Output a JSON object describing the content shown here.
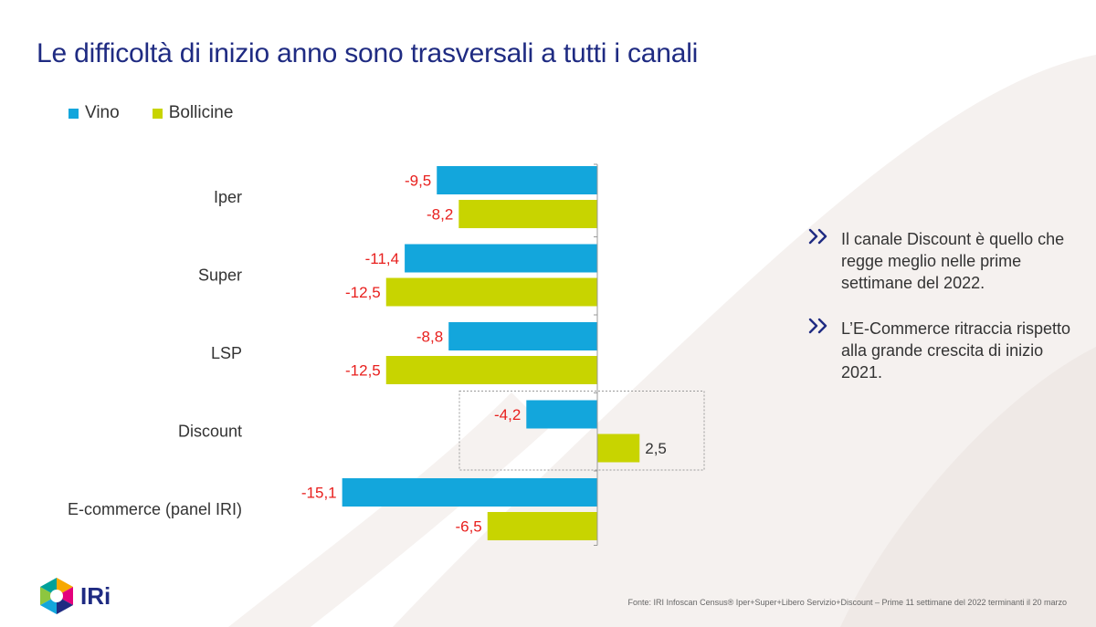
{
  "title": "Le difficoltà di inizio anno sono trasversali a tutti i canali",
  "colors": {
    "vino": "#13a6dc",
    "bollicine": "#c8d400",
    "negative_label": "#e8201e",
    "positive_label": "#333333",
    "title": "#1f2b82"
  },
  "chart_data": {
    "type": "bar",
    "orientation": "horizontal",
    "categories": [
      "Iper",
      "Super",
      "LSP",
      "Discount",
      "E-commerce (panel IRI)"
    ],
    "series": [
      {
        "name": "Vino",
        "values": [
          -9.5,
          -11.4,
          -8.8,
          -4.2,
          -15.1
        ],
        "labels": [
          "-9,5",
          "-11,4",
          "-8,8",
          "-4,2",
          "-15,1"
        ]
      },
      {
        "name": "Bollicine",
        "values": [
          -8.2,
          -12.5,
          -12.5,
          2.5,
          -6.5
        ],
        "labels": [
          "-8,2",
          "-12,5",
          "-12,5",
          "2,5",
          "-6,5"
        ]
      }
    ],
    "xlim": [
      -16,
      6
    ],
    "highlighted_category": "Discount",
    "legend_position": "top-left"
  },
  "bullets": [
    {
      "icon": "double-chevron-icon",
      "text": "Il canale Discount è quello che regge meglio nelle prime settimane del 2022."
    },
    {
      "icon": "double-chevron-icon",
      "text": "L’E-Commerce ritraccia rispetto alla grande crescita di inizio 2021."
    }
  ],
  "logo": {
    "text": "IRi"
  },
  "source": "Fonte: IRI  Infoscan Census®  Iper+Super+Libero Servizio+Discount – Prime 11 settimane del 2022 terminanti il 20 marzo"
}
